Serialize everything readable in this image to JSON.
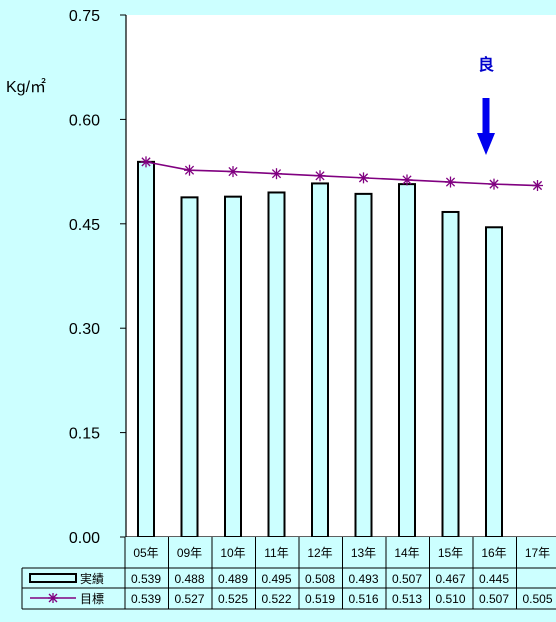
{
  "chart_data": {
    "type": "bar",
    "ylabel": "Kg/㎡",
    "ylim": [
      0,
      0.75
    ],
    "yticks": [
      "0.00",
      "0.15",
      "0.30",
      "0.45",
      "0.60",
      "0.75"
    ],
    "categories": [
      "05年",
      "09年",
      "10年",
      "11年",
      "12年",
      "13年",
      "14年",
      "15年",
      "16年",
      "17年"
    ],
    "series": [
      {
        "name": "実績",
        "type": "bar",
        "values": [
          0.539,
          0.488,
          0.489,
          0.495,
          0.508,
          0.493,
          0.507,
          0.467,
          0.445,
          null
        ],
        "labels": [
          "0.539",
          "0.488",
          "0.489",
          "0.495",
          "0.508",
          "0.493",
          "0.507",
          "0.467",
          "0.445",
          ""
        ],
        "color": "#ccffff"
      },
      {
        "name": "目標",
        "type": "line",
        "values": [
          0.539,
          0.527,
          0.525,
          0.522,
          0.519,
          0.516,
          0.513,
          0.51,
          0.507,
          0.505
        ],
        "labels": [
          "0.539",
          "0.527",
          "0.525",
          "0.522",
          "0.519",
          "0.516",
          "0.513",
          "0.510",
          "0.507",
          "0.505"
        ],
        "color": "#800080"
      }
    ],
    "annotation": {
      "text": "良",
      "color": "#0000ee"
    },
    "grid": false,
    "legend": "table-bottom"
  }
}
